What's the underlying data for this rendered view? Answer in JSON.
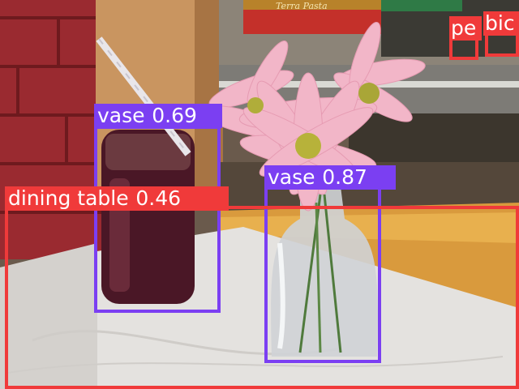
{
  "image": {
    "description_free": true
  },
  "detections": [
    {
      "label": "vase",
      "score": "0.69",
      "color": "#7b3ff2"
    },
    {
      "label": "vase",
      "score": "0.87",
      "color": "#7b3ff2"
    },
    {
      "label": "dining table",
      "score": "0.46",
      "color": "#f03a3a"
    },
    {
      "label": "pe",
      "score": "",
      "color": "#f03a3a"
    },
    {
      "label": "bic",
      "score": "",
      "color": "#f03a3a"
    }
  ],
  "storefront_sign": "Terra Pasta"
}
